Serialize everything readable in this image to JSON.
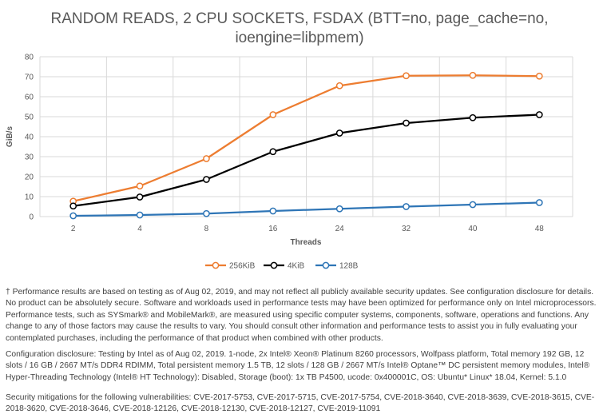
{
  "chart_data": {
    "type": "line",
    "title_lines": [
      "RANDOM READS, 2 CPU SOCKETS, FSDAX (BTT=no, page_cache=no,",
      "ioengine=libpmem)"
    ],
    "title": "RANDOM READS, 2 CPU SOCKETS, FSDAX (BTT=no, page_cache=no, ioengine=libpmem)",
    "xlabel": "Threads",
    "ylabel": "GiB/s",
    "categories": [
      "2",
      "4",
      "8",
      "16",
      "24",
      "32",
      "40",
      "48"
    ],
    "ylim": [
      0,
      80
    ],
    "yticks": [
      0,
      10,
      20,
      30,
      40,
      50,
      60,
      70,
      80
    ],
    "grid": true,
    "legend_position": "bottom",
    "series": [
      {
        "name": "256KiB",
        "color": "#ED7D31",
        "values": [
          7.7,
          15.3,
          29.0,
          51.0,
          65.5,
          70.5,
          70.7,
          70.3
        ]
      },
      {
        "name": "4KiB",
        "color": "#000000",
        "values": [
          5.3,
          9.8,
          18.6,
          32.5,
          41.8,
          46.8,
          49.5,
          51.0
        ]
      },
      {
        "name": "128B",
        "color": "#2E75B6",
        "values": [
          0.4,
          0.8,
          1.5,
          2.8,
          3.9,
          5.0,
          6.0,
          7.0
        ]
      }
    ]
  },
  "notes": {
    "performance": "† Performance results are based on testing as of Aug 02, 2019, and may not reflect all publicly available security updates. See configuration disclosure for details. No product can be absolutely secure. Software and workloads used in performance tests may have been optimized for performance only on Intel microprocessors. Performance tests, such as SYSmark® and MobileMark®, are measured using specific computer systems, components, software, operations and functions. Any change to any of those factors may cause the results to vary. You should consult other information and performance tests to assist you in fully evaluating your contemplated purchases, including the performance of that product when combined with other products.",
    "configuration": "Configuration disclosure: Testing by Intel as of Aug 02, 2019. 1-node, 2x Intel® Xeon® Platinum 8260 processors, Wolfpass platform, Total memory 192 GB, 12 slots / 16 GB / 2667 MT/s DDR4 RDIMM, Total persistent memory 1.5 TB, 12 slots / 128 GB / 2667 MT/s Intel® Optane™ DC persistent memory modules, Intel® Hyper-Threading Technology (Intel® HT Technology): Disabled, Storage (boot): 1x TB P4500, ucode: 0x400001C, OS: Ubuntu* Linux* 18.04, Kernel: 5.1.0",
    "security": "Security mitigations for the following vulnerabilities: CVE-2017-5753, CVE-2017-5715, CVE-2017-5754, CVE-2018-3640, CVE-2018-3639, CVE-2018-3615, CVE-2018-3620, CVE-2018-3646, CVE-2018-12126, CVE-2018-12130, CVE-2018-12127, CVE-2019-11091"
  }
}
